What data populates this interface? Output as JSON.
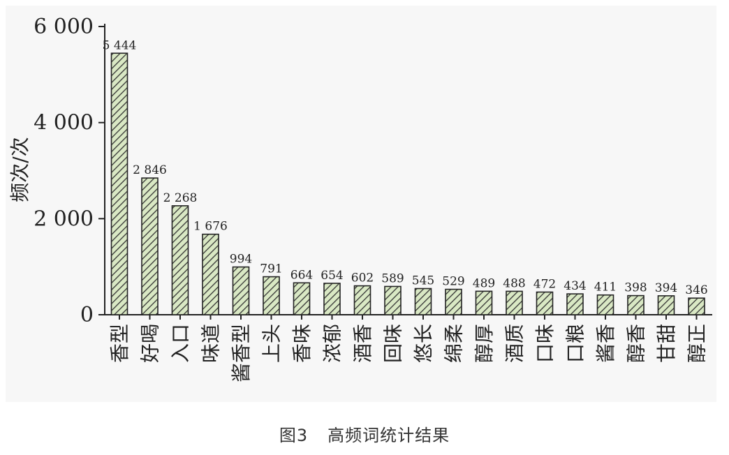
{
  "chart_data": {
    "type": "bar",
    "ylabel": "频次/次",
    "ylim": [
      0,
      6000
    ],
    "yticks": [
      0,
      2000,
      4000,
      6000
    ],
    "ytick_labels": [
      "0",
      "2 000",
      "4 000",
      "6 000"
    ],
    "categories": [
      "香型",
      "好喝",
      "入口",
      "味道",
      "酱香型",
      "上头",
      "香味",
      "浓郁",
      "酒香",
      "回味",
      "悠长",
      "绵柔",
      "醇厚",
      "酒质",
      "口味",
      "口粮",
      "酱香",
      "醇香",
      "甘甜",
      "醇正"
    ],
    "values": [
      5444,
      2846,
      2268,
      1676,
      994,
      791,
      664,
      654,
      602,
      589,
      545,
      529,
      489,
      488,
      472,
      434,
      411,
      398,
      394,
      346
    ],
    "value_labels": [
      "5 444",
      "2 846",
      "2 268",
      "1 676",
      "994",
      "791",
      "664",
      "654",
      "602",
      "589",
      "545",
      "529",
      "489",
      "488",
      "472",
      "434",
      "411",
      "398",
      "394",
      "346"
    ],
    "grid": false,
    "colors": {
      "bar_fill": "#d9e8c4",
      "hatch": "#333333",
      "axis": "#222222"
    }
  },
  "caption": {
    "number": "图3",
    "text": "高频词统计结果"
  }
}
